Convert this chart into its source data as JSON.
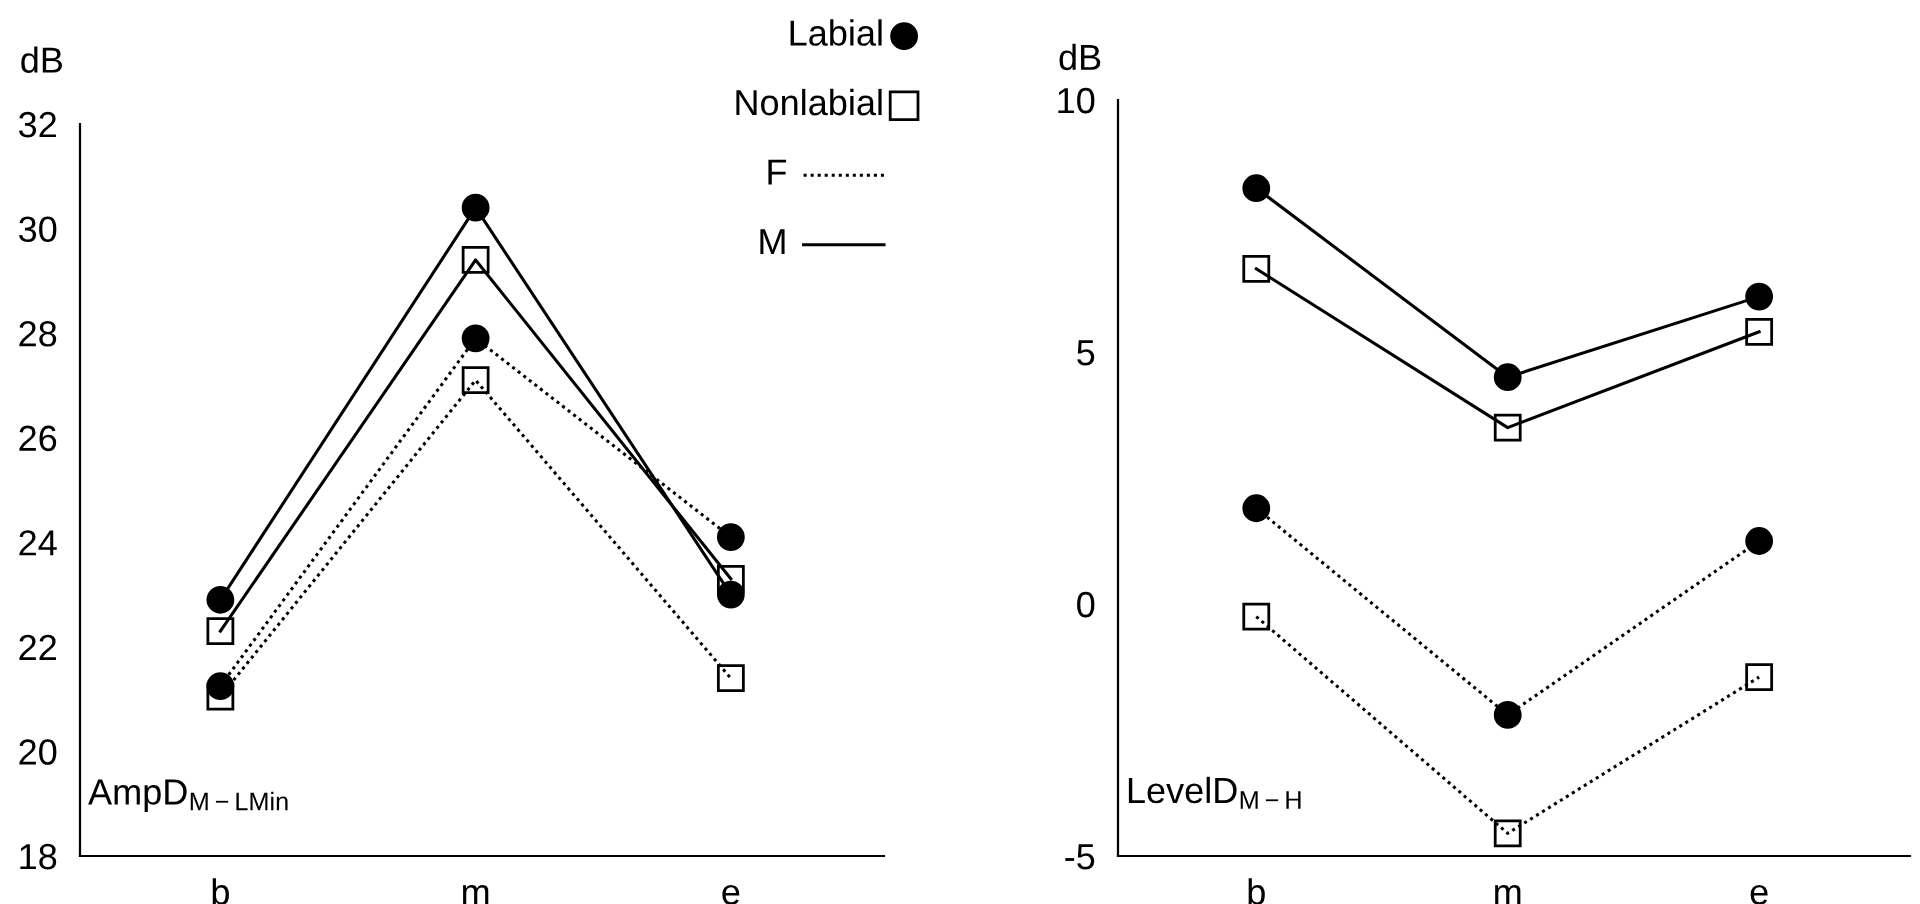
{
  "chart_data": [
    {
      "type": "line",
      "ylabel": "dB",
      "categories": [
        "b",
        "m",
        "e"
      ],
      "ylim": [
        18,
        32
      ],
      "yticks": [
        18,
        20,
        22,
        24,
        26,
        28,
        30,
        32
      ],
      "grid": false,
      "annotations": [
        "AmpD$_{M−LMin}$",
        "Labial",
        "Nonlabial",
        "F",
        "M"
      ],
      "series": [
        {
          "color": "#000000",
          "marker": "circle",
          "line_style": "solid",
          "values": [
            22.9,
            30.4,
            23.0
          ]
        },
        {
          "color": "#000000",
          "marker": "square",
          "line_style": "solid",
          "values": [
            22.3,
            29.4,
            23.3
          ]
        },
        {
          "color": "#000000",
          "marker": "circle",
          "line_style": "dotted",
          "values": [
            21.25,
            27.9,
            24.1
          ]
        },
        {
          "color": "#000000",
          "marker": "square",
          "line_style": "dotted",
          "values": [
            21.05,
            27.1,
            21.4
          ]
        }
      ]
    },
    {
      "type": "line",
      "ylabel": "dB",
      "categories": [
        "b",
        "m",
        "e"
      ],
      "ylim": [
        -5,
        10
      ],
      "yticks": [
        -5,
        0,
        5,
        10
      ],
      "grid": false,
      "annotations": [
        "LevelD$_{M−H}$"
      ],
      "series": [
        {
          "color": "#000000",
          "marker": "circle",
          "line_style": "solid",
          "values": [
            8.25,
            4.5,
            6.1
          ]
        },
        {
          "color": "#000000",
          "marker": "square",
          "line_style": "solid",
          "values": [
            6.65,
            3.5,
            5.4
          ]
        },
        {
          "color": "#000000",
          "marker": "circle",
          "line_style": "dotted",
          "values": [
            1.9,
            -2.2,
            1.25
          ]
        },
        {
          "color": "#000000",
          "marker": "square",
          "line_style": "dotted",
          "values": [
            -0.25,
            -4.55,
            -1.45
          ]
        }
      ]
    }
  ]
}
